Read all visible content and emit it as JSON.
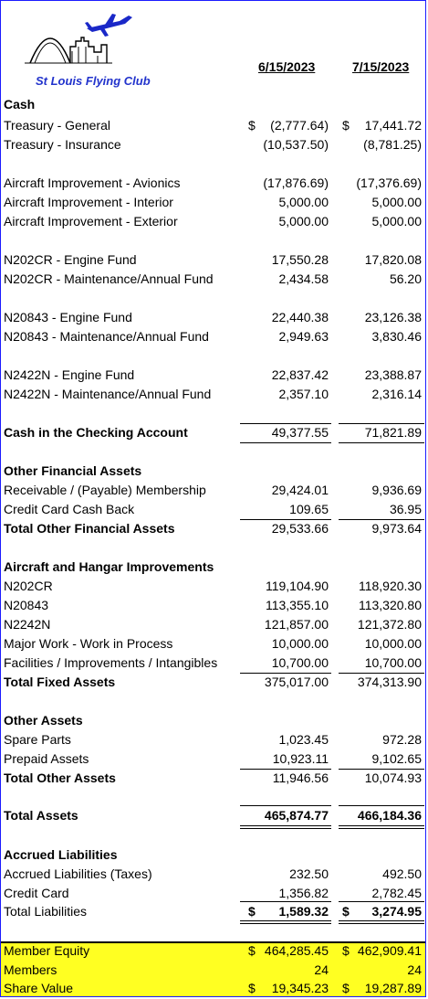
{
  "logo": {
    "text": "St Louis Flying Club"
  },
  "headers": {
    "col1": "6/15/2023",
    "col2": "7/15/2023"
  },
  "rows": [
    {
      "label": "Cash",
      "v1": "",
      "v2": ""
    },
    {
      "label": "Treasury - General",
      "d1": "$",
      "v1": "(2,777.64)",
      "d2": "$",
      "v2": "17,441.72"
    },
    {
      "label": "Treasury - Insurance",
      "v1": "(10,537.50)",
      "v2": "(8,781.25)"
    },
    {
      "label": "Aircraft Improvement - Avionics",
      "v1": "(17,876.69)",
      "v2": "(17,376.69)"
    },
    {
      "label": "Aircraft Improvement - Interior",
      "v1": "5,000.00",
      "v2": "5,000.00"
    },
    {
      "label": "Aircraft Improvement - Exterior",
      "v1": "5,000.00",
      "v2": "5,000.00"
    },
    {
      "label": "N202CR - Engine Fund",
      "v1": "17,550.28",
      "v2": "17,820.08"
    },
    {
      "label": "N202CR - Maintenance/Annual Fund",
      "v1": "2,434.58",
      "v2": "56.20"
    },
    {
      "label": "N20843 - Engine Fund",
      "v1": "22,440.38",
      "v2": "23,126.38"
    },
    {
      "label": "N20843 - Maintenance/Annual Fund",
      "v1": "2,949.63",
      "v2": "3,830.46"
    },
    {
      "label": "N2422N - Engine Fund",
      "v1": "22,837.42",
      "v2": "23,388.87"
    },
    {
      "label": "N2422N - Maintenance/Annual Fund",
      "v1": "2,357.10",
      "v2": "2,316.14"
    },
    {
      "label": "Cash in the Checking Account",
      "v1": "49,377.55",
      "v2": "71,821.89"
    },
    {
      "label": "Other Financial Assets",
      "v1": "",
      "v2": ""
    },
    {
      "label": "Receivable / (Payable) Membership",
      "v1": "29,424.01",
      "v2": "9,936.69"
    },
    {
      "label": "Credit Card Cash Back",
      "v1": "109.65",
      "v2": "36.95"
    },
    {
      "label": "Total Other Financial Assets",
      "v1": "29,533.66",
      "v2": "9,973.64"
    },
    {
      "label": "Aircraft and Hangar Improvements",
      "v1": "",
      "v2": ""
    },
    {
      "label": "N202CR",
      "v1": "119,104.90",
      "v2": "118,920.30"
    },
    {
      "label": "N20843",
      "v1": "113,355.10",
      "v2": "113,320.80"
    },
    {
      "label": "N2242N",
      "v1": "121,857.00",
      "v2": "121,372.80"
    },
    {
      "label": "Major Work - Work in Process",
      "v1": "10,000.00",
      "v2": "10,000.00"
    },
    {
      "label": "Facilities / Improvements / Intangibles",
      "v1": "10,700.00",
      "v2": "10,700.00"
    },
    {
      "label": "Total Fixed Assets",
      "v1": "375,017.00",
      "v2": "374,313.90"
    },
    {
      "label": "Other Assets",
      "v1": "",
      "v2": ""
    },
    {
      "label": "Spare Parts",
      "v1": "1,023.45",
      "v2": "972.28"
    },
    {
      "label": "Prepaid Assets",
      "v1": "10,923.11",
      "v2": "9,102.65"
    },
    {
      "label": "Total Other Assets",
      "v1": "11,946.56",
      "v2": "10,074.93"
    },
    {
      "label": "Total Assets",
      "v1": "465,874.77",
      "v2": "466,184.36"
    },
    {
      "label": "Accrued Liabilities",
      "v1": "",
      "v2": ""
    },
    {
      "label": "Accrued Liabilities (Taxes)",
      "v1": "232.50",
      "v2": "492.50"
    },
    {
      "label": "Credit Card",
      "v1": "1,356.82",
      "v2": "2,782.45"
    },
    {
      "label": "Total Liabilities",
      "d1": "$",
      "v1": "1,589.32",
      "d2": "$",
      "v2": "3,274.95"
    },
    {
      "label": "Member Equity",
      "d1": "$",
      "v1": "464,285.45",
      "d2": "$",
      "v2": "462,909.41"
    },
    {
      "label": "Members",
      "v1": "24",
      "v2": "24"
    },
    {
      "label": "Share Value",
      "d1": "$",
      "v1": "19,345.23",
      "d2": "$",
      "v2": "19,287.89"
    }
  ]
}
